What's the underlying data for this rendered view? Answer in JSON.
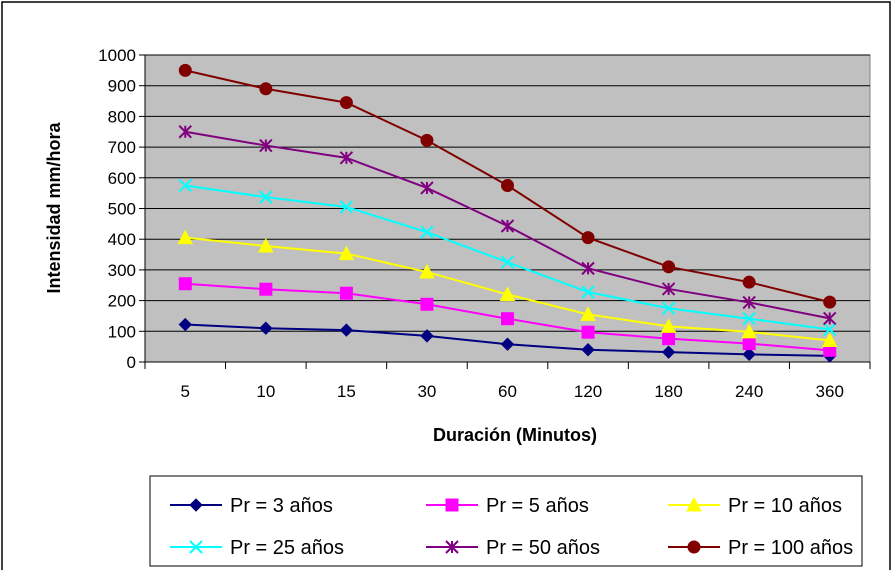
{
  "chart_data": {
    "type": "line",
    "title": "",
    "xlabel": "Duración (Minutos)",
    "ylabel": "Intensidad mm/hora",
    "categories": [
      "5",
      "10",
      "15",
      "30",
      "60",
      "120",
      "180",
      "240",
      "360"
    ],
    "ylim": [
      0,
      1000
    ],
    "yticks": [
      "0",
      "100",
      "200",
      "300",
      "400",
      "500",
      "600",
      "700",
      "800",
      "900",
      "1000"
    ],
    "grid": true,
    "plot_background": "#c0c0c0",
    "legend_position": "bottom",
    "series": [
      {
        "name": "Pr = 3 años",
        "color": "#000080",
        "marker": "diamond",
        "values": [
          122,
          110,
          104,
          85,
          58,
          40,
          32,
          25,
          20
        ]
      },
      {
        "name": "Pr = 5 años",
        "color": "#ff00ff",
        "marker": "square",
        "values": [
          255,
          237,
          224,
          188,
          141,
          97,
          76,
          60,
          38
        ]
      },
      {
        "name": "Pr = 10 años",
        "color": "#ffff00",
        "marker": "triangle",
        "values": [
          405,
          378,
          353,
          293,
          220,
          155,
          116,
          98,
          70
        ]
      },
      {
        "name": "Pr = 25 años",
        "color": "#00ffff",
        "marker": "x",
        "values": [
          575,
          537,
          505,
          423,
          325,
          228,
          175,
          141,
          106
        ]
      },
      {
        "name": "Pr = 50 años",
        "color": "#800080",
        "marker": "star",
        "values": [
          750,
          705,
          665,
          567,
          443,
          305,
          238,
          194,
          142
        ]
      },
      {
        "name": "Pr = 100 años",
        "color": "#800000",
        "marker": "circle",
        "values": [
          950,
          890,
          845,
          722,
          575,
          405,
          310,
          260,
          195
        ]
      }
    ]
  }
}
